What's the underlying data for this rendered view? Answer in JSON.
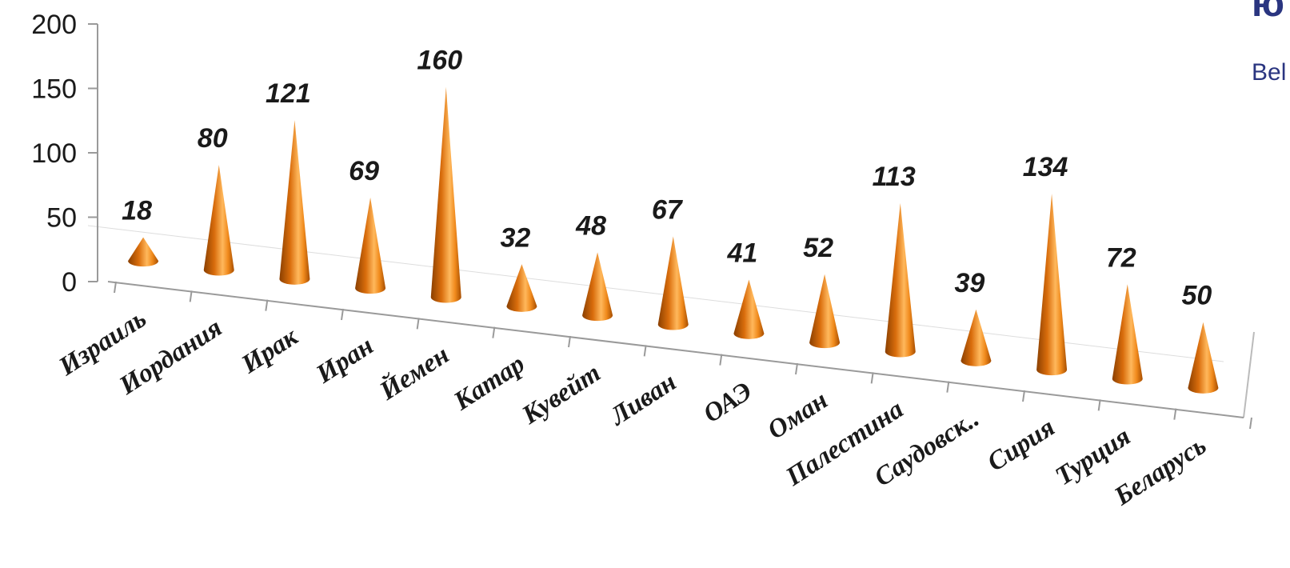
{
  "chart_data": {
    "type": "bar",
    "bar_shape": "cone-3d",
    "categories": [
      "Израиль",
      "Иордания",
      "Ирак",
      "Иран",
      "Йемен",
      "Катар",
      "Кувейт",
      "Ливан",
      "ОАЭ",
      "Оман",
      "Палестина",
      "Саудовск..",
      "Сирия",
      "Турция",
      "Беларусь"
    ],
    "values": [
      18,
      80,
      121,
      69,
      160,
      32,
      48,
      67,
      41,
      52,
      113,
      39,
      134,
      72,
      50
    ],
    "yticks": [
      "0",
      "50",
      "100",
      "150",
      "200"
    ],
    "ylim": [
      0,
      200
    ],
    "grid": true,
    "colors": {
      "cone": "#f08a1c",
      "cone_dark": "#8a3f00",
      "cone_light": "#ffc98a"
    }
  },
  "logo": {
    "mark": "ю",
    "text": "Bel"
  }
}
